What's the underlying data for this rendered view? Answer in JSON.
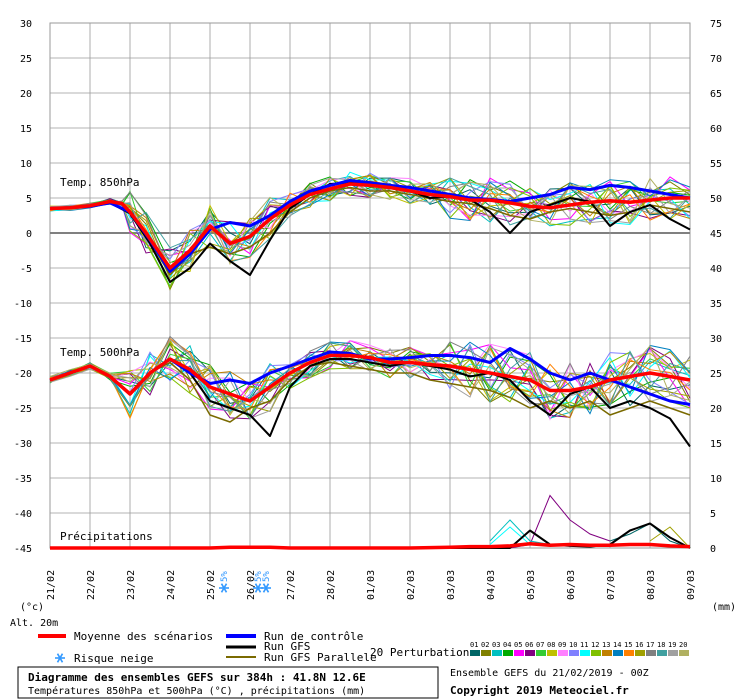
{
  "colors": {
    "mean": "#ff0000",
    "control": "#0000ff",
    "gfs": "#000000",
    "gfs_parallel": "#7a6a00",
    "grid": "#9a9a9a",
    "zero_line": "#808080",
    "snow": "#3399ff"
  },
  "perturbation_colors": [
    "#006666",
    "#808000",
    "#00c0c0",
    "#00aa00",
    "#ff00ff",
    "#800080",
    "#33cc33",
    "#c0c000",
    "#ff80ff",
    "#8080ff",
    "#00ffff",
    "#80c000",
    "#c08000",
    "#0080c0",
    "#ff8000",
    "#a0a000",
    "#808080",
    "#40a0a0",
    "#a0a0a0",
    "#b0b060"
  ],
  "chart_data": {
    "type": "line",
    "title": "Diagramme des ensembles GEFS sur 384h : 41.8N 12.6E",
    "subtitle": "Températures 850hPa et 500hPa (°C) , précipitations (mm)",
    "run_label": "Ensemble GEFS du 21/02/2019 - 00Z",
    "copyright": "Copyright 2019 Meteociel.fr",
    "left_axis_label": "(°c)",
    "right_axis_label": "(mm)",
    "altitude_label": "Alt. 20m",
    "y_left_ticks": [
      "30",
      "25",
      "20",
      "15",
      "10",
      "5",
      "0",
      "-5",
      "-10",
      "-15",
      "-20",
      "-25",
      "-30",
      "-35",
      "-40",
      "-45"
    ],
    "y_right_ticks": [
      "75",
      "70",
      "65",
      "60",
      "55",
      "50",
      "45",
      "40",
      "35",
      "30",
      "25",
      "20",
      "15",
      "10",
      "5",
      "0"
    ],
    "ylim": [
      -45,
      30
    ],
    "x_start": "21/02",
    "x_end": "09/03",
    "x_labels": [
      "22/02",
      "23/02",
      "24/02",
      "25/02",
      "26/02",
      "27/02",
      "28/02",
      "01/03",
      "02/03",
      "03/03",
      "04/03",
      "05/03",
      "06/03",
      "07/03",
      "08/03",
      "09/03"
    ],
    "series_labels": {
      "t850": "Temp. 850hPa",
      "t500": "Temp. 500hPa",
      "precip": "Précipitations"
    },
    "legend": {
      "mean": "Moyenne des scénarios",
      "control": "Run de contrôle",
      "gfs": "Run GFS",
      "gfs_parallel": "Run GFS Parallele",
      "perturbations": "20 Perturbations",
      "snow": "Risque neige",
      "perturbation_numbers": [
        "01",
        "02",
        "03",
        "04",
        "05",
        "06",
        "07",
        "08",
        "09",
        "10",
        "11",
        "12",
        "13",
        "14",
        "15",
        "16",
        "17",
        "18",
        "19",
        "20"
      ]
    },
    "snow_risk": [
      {
        "day": 4.35,
        "text": "5%"
      },
      {
        "day": 5.2,
        "text": "5%"
      },
      {
        "day": 5.4,
        "text": "5%"
      }
    ],
    "t850_mean": [
      [
        0,
        3.5
      ],
      [
        0.5,
        3.6
      ],
      [
        1,
        3.9
      ],
      [
        1.5,
        4.5
      ],
      [
        1.8,
        4.2
      ],
      [
        2,
        3
      ],
      [
        2.4,
        0
      ],
      [
        3,
        -5
      ],
      [
        3.5,
        -2.5
      ],
      [
        4,
        1
      ],
      [
        4.5,
        -1.5
      ],
      [
        5,
        -0.5
      ],
      [
        5.5,
        2
      ],
      [
        6,
        4
      ],
      [
        6.5,
        5.5
      ],
      [
        7,
        6.3
      ],
      [
        7.5,
        7
      ],
      [
        8,
        6.8
      ],
      [
        8.5,
        6.5
      ],
      [
        9,
        6
      ],
      [
        9.5,
        5.5
      ],
      [
        10,
        5.2
      ],
      [
        10.5,
        4.7
      ],
      [
        11,
        4.7
      ],
      [
        11.5,
        4.3
      ],
      [
        12,
        3.8
      ],
      [
        12.5,
        3.6
      ],
      [
        13,
        4
      ],
      [
        13.5,
        4.4
      ],
      [
        14,
        4.6
      ],
      [
        14.5,
        4.4
      ],
      [
        15,
        4.7
      ],
      [
        15.5,
        5
      ],
      [
        16,
        5
      ]
    ],
    "t850_control": [
      [
        0,
        3.5
      ],
      [
        0.5,
        3.6
      ],
      [
        1,
        3.8
      ],
      [
        1.5,
        4.3
      ],
      [
        2,
        3
      ],
      [
        2.5,
        -1
      ],
      [
        3,
        -5.5
      ],
      [
        3.5,
        -3
      ],
      [
        4,
        0.5
      ],
      [
        4.5,
        1.5
      ],
      [
        5,
        1
      ],
      [
        5.5,
        2.5
      ],
      [
        6,
        4.5
      ],
      [
        6.5,
        6
      ],
      [
        7,
        6.8
      ],
      [
        7.5,
        7.5
      ],
      [
        8,
        7.2
      ],
      [
        8.5,
        6.8
      ],
      [
        9,
        6.5
      ],
      [
        9.5,
        6
      ],
      [
        10,
        5.5
      ],
      [
        10.5,
        5
      ],
      [
        11,
        4.8
      ],
      [
        11.5,
        4.5
      ],
      [
        12,
        5
      ],
      [
        12.5,
        5.5
      ],
      [
        13,
        6.5
      ],
      [
        13.5,
        6.2
      ],
      [
        14,
        6.8
      ],
      [
        14.5,
        6.5
      ],
      [
        15,
        6
      ],
      [
        15.5,
        5.5
      ],
      [
        16,
        5
      ]
    ],
    "t850_gfs": [
      [
        0,
        3.5
      ],
      [
        0.5,
        3.6
      ],
      [
        1,
        3.8
      ],
      [
        1.5,
        4.3
      ],
      [
        2,
        2.8
      ],
      [
        2.5,
        -1.5
      ],
      [
        3,
        -7
      ],
      [
        3.5,
        -5
      ],
      [
        4,
        -1.5
      ],
      [
        4.5,
        -4
      ],
      [
        5,
        -6
      ],
      [
        5.5,
        -1
      ],
      [
        6,
        3.5
      ],
      [
        6.5,
        5.5
      ],
      [
        7,
        7
      ],
      [
        7.5,
        7.2
      ],
      [
        8,
        7
      ],
      [
        8.5,
        6.5
      ],
      [
        9,
        6
      ],
      [
        9.5,
        5
      ],
      [
        10,
        5.2
      ],
      [
        10.5,
        4.8
      ],
      [
        11,
        3
      ],
      [
        11.5,
        0
      ],
      [
        12,
        3
      ],
      [
        12.5,
        4
      ],
      [
        13,
        5
      ],
      [
        13.5,
        4.5
      ],
      [
        14,
        1
      ],
      [
        14.5,
        3
      ],
      [
        15,
        4
      ],
      [
        15.5,
        2
      ],
      [
        16,
        0.5
      ]
    ],
    "t850_gfs_parallel": [
      [
        0,
        3.5
      ],
      [
        0.5,
        3.6
      ],
      [
        1,
        3.8
      ],
      [
        1.5,
        4.3
      ],
      [
        2,
        2.8
      ],
      [
        2.5,
        -1
      ],
      [
        3,
        -6
      ],
      [
        3.5,
        -3
      ],
      [
        4,
        -2
      ],
      [
        4.5,
        -3
      ],
      [
        5,
        -2
      ],
      [
        5.5,
        0
      ],
      [
        6,
        3
      ],
      [
        6.5,
        5
      ],
      [
        7,
        6
      ],
      [
        7.5,
        6.5
      ],
      [
        8,
        6
      ],
      [
        8.5,
        6
      ],
      [
        9,
        5.5
      ],
      [
        9.5,
        5
      ],
      [
        10,
        4.5
      ],
      [
        10.5,
        4.2
      ],
      [
        11,
        3.5
      ],
      [
        11.5,
        2.5
      ],
      [
        12,
        2
      ],
      [
        12.5,
        3
      ],
      [
        13,
        3.5
      ],
      [
        13.5,
        3
      ],
      [
        14,
        2.5
      ],
      [
        14.5,
        3
      ],
      [
        15,
        4
      ],
      [
        15.5,
        3.5
      ],
      [
        16,
        3
      ]
    ],
    "t500_mean": [
      [
        0,
        -21
      ],
      [
        0.5,
        -20
      ],
      [
        1,
        -19
      ],
      [
        1.5,
        -20.5
      ],
      [
        2,
        -23
      ],
      [
        2.5,
        -20
      ],
      [
        3,
        -18
      ],
      [
        3.5,
        -19.5
      ],
      [
        4,
        -22
      ],
      [
        4.5,
        -23
      ],
      [
        5,
        -24
      ],
      [
        5.5,
        -22
      ],
      [
        6,
        -20
      ],
      [
        6.5,
        -18.5
      ],
      [
        7,
        -17.5
      ],
      [
        7.5,
        -17.5
      ],
      [
        8,
        -17.8
      ],
      [
        8.5,
        -18.5
      ],
      [
        9,
        -18.5
      ],
      [
        9.5,
        -18.8
      ],
      [
        10,
        -19
      ],
      [
        10.5,
        -19.5
      ],
      [
        11,
        -20
      ],
      [
        11.5,
        -20.5
      ],
      [
        12,
        -21
      ],
      [
        12.5,
        -22.5
      ],
      [
        13,
        -22.5
      ],
      [
        13.5,
        -22
      ],
      [
        14,
        -21
      ],
      [
        14.5,
        -20.5
      ],
      [
        15,
        -20
      ],
      [
        15.5,
        -20.5
      ],
      [
        16,
        -21
      ]
    ],
    "t500_control": [
      [
        0,
        -21
      ],
      [
        0.5,
        -20
      ],
      [
        1,
        -19
      ],
      [
        1.5,
        -20.5
      ],
      [
        2,
        -23
      ],
      [
        2.5,
        -20
      ],
      [
        3,
        -18
      ],
      [
        3.5,
        -20
      ],
      [
        4,
        -21.5
      ],
      [
        4.5,
        -21
      ],
      [
        5,
        -21.5
      ],
      [
        5.5,
        -20
      ],
      [
        6,
        -19
      ],
      [
        6.5,
        -18
      ],
      [
        7,
        -17
      ],
      [
        7.5,
        -17.2
      ],
      [
        8,
        -18
      ],
      [
        8.5,
        -18
      ],
      [
        9,
        -17.8
      ],
      [
        9.5,
        -17.5
      ],
      [
        10,
        -17.5
      ],
      [
        10.5,
        -17.8
      ],
      [
        11,
        -18.5
      ],
      [
        11.5,
        -16.5
      ],
      [
        12,
        -18
      ],
      [
        12.5,
        -20
      ],
      [
        13,
        -21
      ],
      [
        13.5,
        -20
      ],
      [
        14,
        -21
      ],
      [
        14.5,
        -22
      ],
      [
        15,
        -23
      ],
      [
        15.5,
        -24
      ],
      [
        16,
        -24.5
      ]
    ],
    "t500_gfs": [
      [
        0,
        -21
      ],
      [
        0.5,
        -20
      ],
      [
        1,
        -19
      ],
      [
        1.5,
        -20.5
      ],
      [
        2,
        -23
      ],
      [
        2.5,
        -20
      ],
      [
        3,
        -18
      ],
      [
        3.5,
        -20
      ],
      [
        4,
        -24
      ],
      [
        4.5,
        -25
      ],
      [
        5,
        -26
      ],
      [
        5.5,
        -29
      ],
      [
        6,
        -22
      ],
      [
        6.5,
        -19
      ],
      [
        7,
        -18
      ],
      [
        7.5,
        -18
      ],
      [
        8,
        -18.5
      ],
      [
        8.5,
        -19
      ],
      [
        9,
        -18.5
      ],
      [
        9.5,
        -19
      ],
      [
        10,
        -19.5
      ],
      [
        10.5,
        -20.5
      ],
      [
        11,
        -20
      ],
      [
        11.5,
        -21
      ],
      [
        12,
        -24
      ],
      [
        12.5,
        -26
      ],
      [
        13,
        -23
      ],
      [
        13.5,
        -22
      ],
      [
        14,
        -25
      ],
      [
        14.5,
        -24
      ],
      [
        15,
        -25
      ],
      [
        15.5,
        -26.5
      ],
      [
        16,
        -30.5
      ]
    ],
    "t500_gfs_parallel": [
      [
        0,
        -21
      ],
      [
        0.5,
        -20
      ],
      [
        1,
        -19
      ],
      [
        1.5,
        -20.5
      ],
      [
        2,
        -23
      ],
      [
        2.5,
        -20
      ],
      [
        3,
        -18.5
      ],
      [
        3.5,
        -21
      ],
      [
        4,
        -26
      ],
      [
        4.5,
        -27
      ],
      [
        5,
        -25
      ],
      [
        5.5,
        -24
      ],
      [
        6,
        -21
      ],
      [
        6.5,
        -19
      ],
      [
        7,
        -18.5
      ],
      [
        7.5,
        -19
      ],
      [
        8,
        -19.5
      ],
      [
        8.5,
        -20
      ],
      [
        9,
        -20
      ],
      [
        9.5,
        -21
      ],
      [
        10,
        -21.5
      ],
      [
        10.5,
        -22
      ],
      [
        11,
        -22.5
      ],
      [
        11.5,
        -23.5
      ],
      [
        12,
        -25
      ],
      [
        12.5,
        -24
      ],
      [
        13,
        -25
      ],
      [
        13.5,
        -24
      ],
      [
        14,
        -26
      ],
      [
        14.5,
        -25
      ],
      [
        15,
        -24
      ],
      [
        15.5,
        -25
      ],
      [
        16,
        -26
      ]
    ],
    "precip_mean": [
      [
        0,
        0
      ],
      [
        1,
        0
      ],
      [
        2,
        0
      ],
      [
        3,
        0
      ],
      [
        4,
        0
      ],
      [
        4.5,
        0.1
      ],
      [
        5,
        0.1
      ],
      [
        5.5,
        0.1
      ],
      [
        6,
        0
      ],
      [
        7,
        0
      ],
      [
        8,
        0
      ],
      [
        9,
        0
      ],
      [
        10,
        0.1
      ],
      [
        10.5,
        0.2
      ],
      [
        11,
        0.2
      ],
      [
        11.5,
        0.3
      ],
      [
        12,
        0.6
      ],
      [
        12.5,
        0.4
      ],
      [
        13,
        0.5
      ],
      [
        13.5,
        0.4
      ],
      [
        14,
        0.4
      ],
      [
        14.5,
        0.5
      ],
      [
        15,
        0.5
      ],
      [
        15.5,
        0.3
      ],
      [
        16,
        0.2
      ]
    ],
    "precip_gfs": [
      [
        0,
        0
      ],
      [
        11,
        0
      ],
      [
        11.5,
        0
      ],
      [
        12,
        2.5
      ],
      [
        12.5,
        0.5
      ],
      [
        13,
        0.3
      ],
      [
        13.5,
        0.2
      ],
      [
        14,
        0.5
      ],
      [
        14.5,
        2.5
      ],
      [
        15,
        3.5
      ],
      [
        15.5,
        1.5
      ],
      [
        16,
        0
      ]
    ],
    "precip_spikes": [
      {
        "member": 6,
        "points": [
          [
            11.5,
            0
          ],
          [
            12,
            0.5
          ],
          [
            12.5,
            7.5
          ],
          [
            13,
            4
          ],
          [
            13.5,
            2
          ],
          [
            14,
            1
          ]
        ]
      },
      {
        "member": 3,
        "points": [
          [
            11,
            1
          ],
          [
            11.5,
            4
          ],
          [
            12,
            1
          ],
          [
            12.5,
            0.5
          ]
        ]
      },
      {
        "member": 1,
        "points": [
          [
            14,
            1
          ],
          [
            14.5,
            2
          ],
          [
            15,
            3.5
          ],
          [
            15.5,
            1
          ],
          [
            16,
            0
          ]
        ]
      },
      {
        "member": 11,
        "points": [
          [
            11,
            0.5
          ],
          [
            11.5,
            3
          ],
          [
            12,
            0.5
          ]
        ]
      },
      {
        "member": 16,
        "points": [
          [
            15,
            1
          ],
          [
            15.5,
            3
          ],
          [
            16,
            0
          ]
        ]
      }
    ]
  }
}
